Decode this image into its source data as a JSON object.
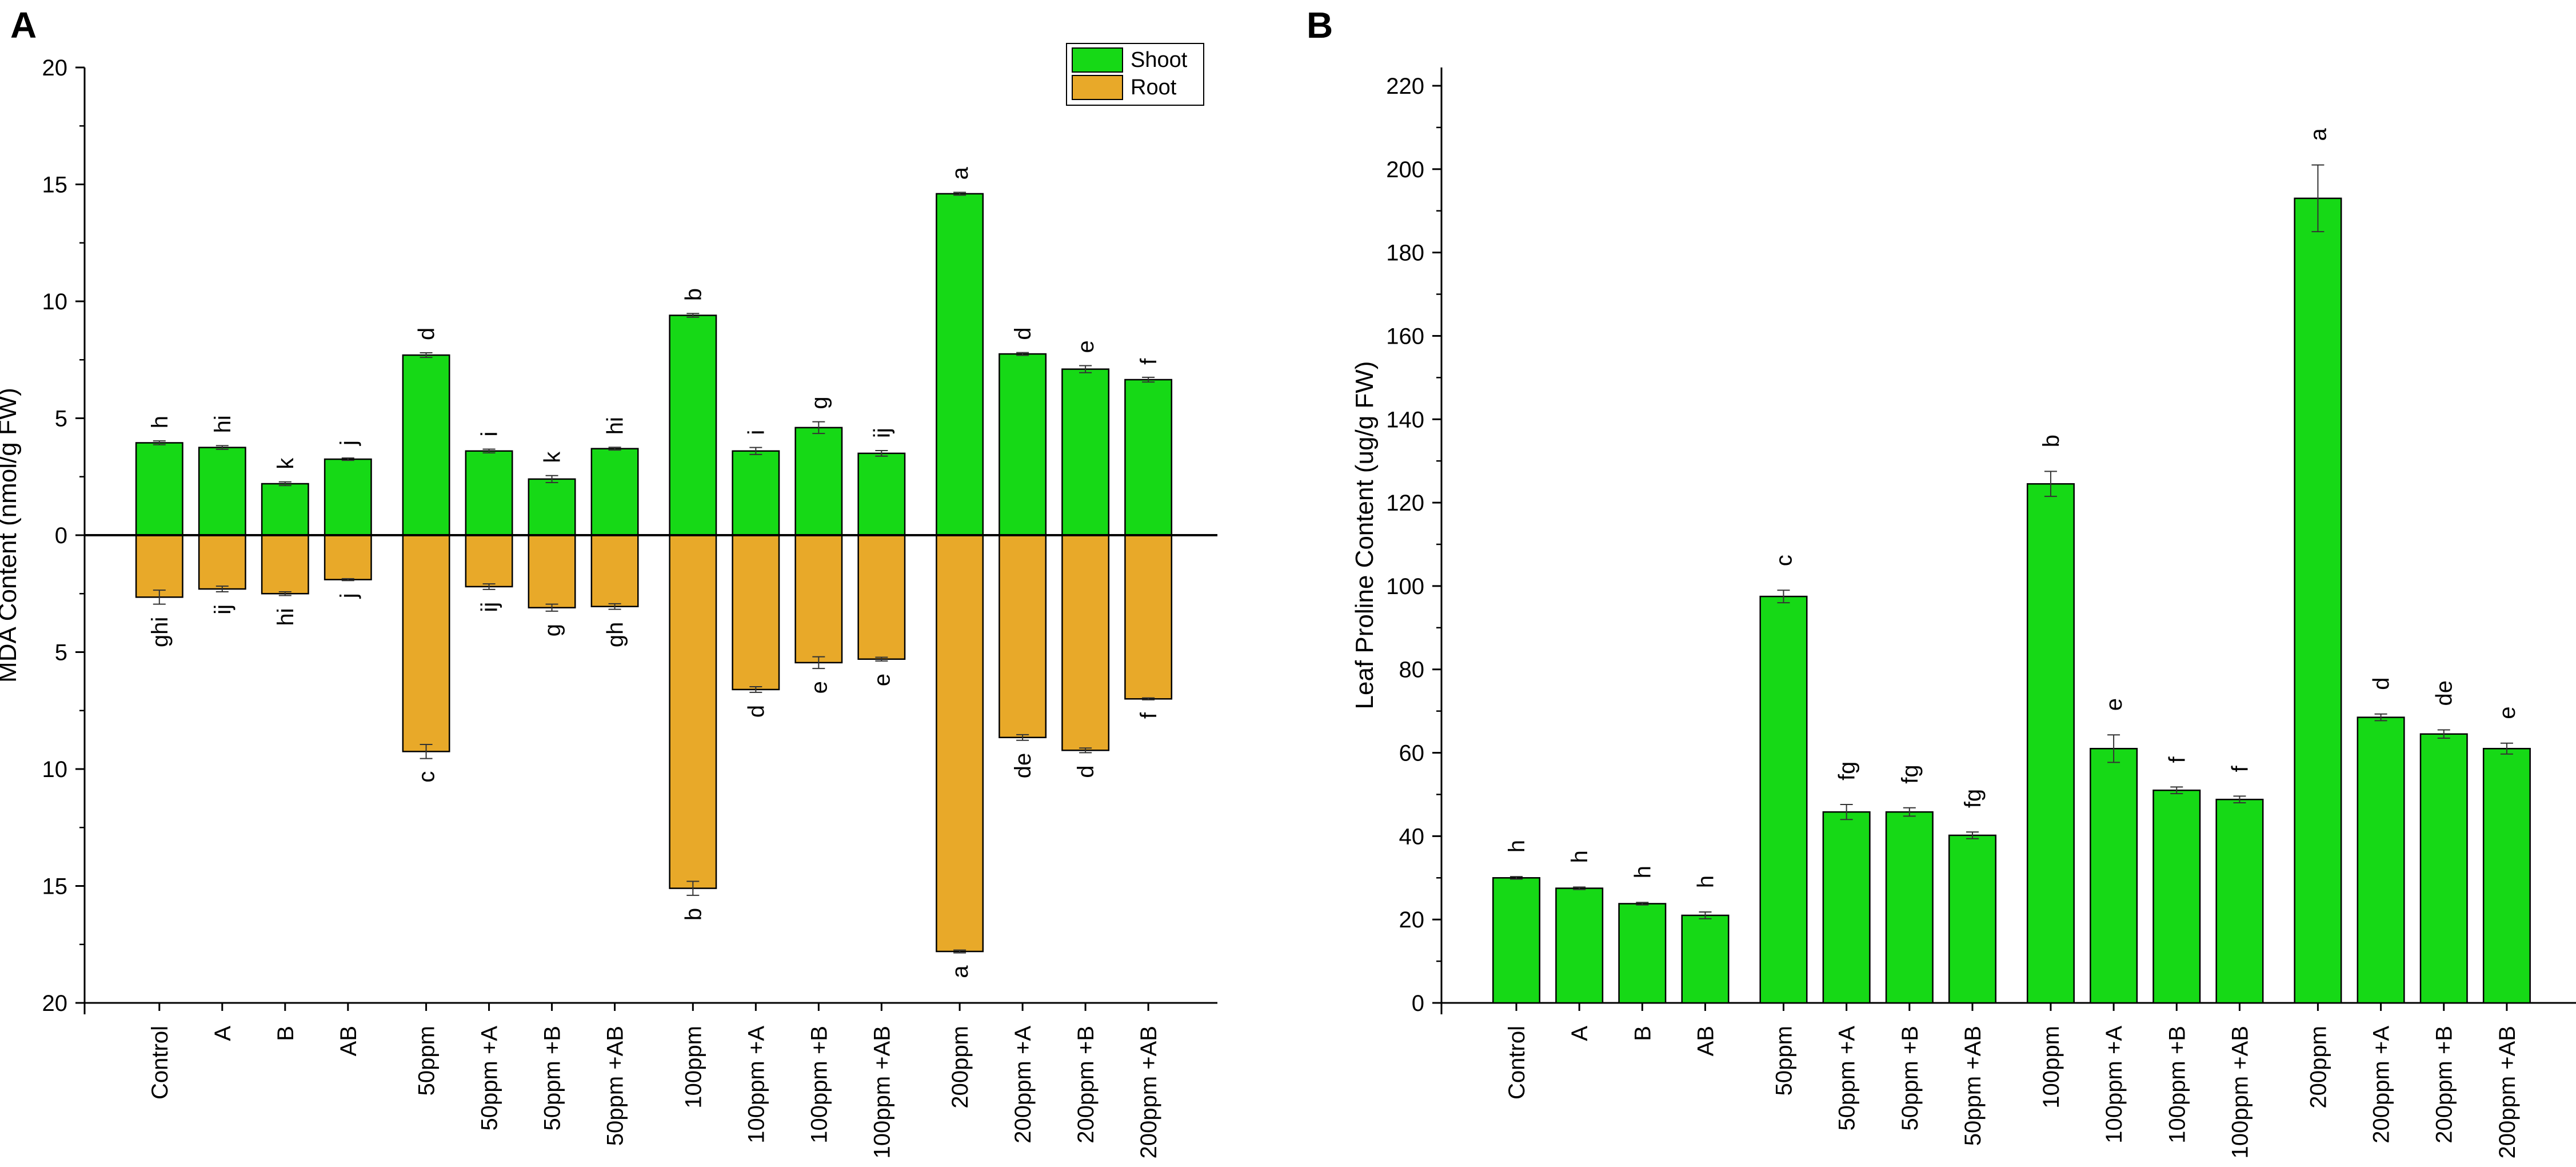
{
  "chart_data": [
    {
      "panel": "A",
      "type": "bar",
      "ylabel": "MDA Content (nmol/g FW)",
      "xlabel": "",
      "ylim": [
        -20,
        20
      ],
      "yticks": [
        20,
        15,
        10,
        5,
        0,
        -5,
        -10,
        -15,
        -20
      ],
      "ytick_labels": [
        "20",
        "15",
        "10",
        "5",
        "0",
        "5",
        "10",
        "15",
        "20"
      ],
      "legend": {
        "position": "top-right",
        "entries": [
          "Shoot",
          "Root"
        ]
      },
      "colors": {
        "Shoot": "#16d916",
        "Root": "#e8a929"
      },
      "categories": [
        "Control",
        "A",
        "B",
        "AB",
        "50ppm",
        "50ppm +A",
        "50ppm +B",
        "50ppm +AB",
        "100ppm",
        "100ppm +A",
        "100ppm +B",
        "100ppm +AB",
        "200ppm",
        "200ppm +A",
        "200ppm +B",
        "200ppm +AB"
      ],
      "series": [
        {
          "name": "Shoot",
          "values": [
            3.95,
            3.75,
            2.2,
            3.25,
            7.7,
            3.6,
            2.4,
            3.7,
            9.4,
            3.6,
            4.6,
            3.5,
            14.6,
            7.75,
            7.1,
            6.65
          ],
          "errors": [
            0.08,
            0.08,
            0.08,
            0.05,
            0.1,
            0.08,
            0.15,
            0.06,
            0.08,
            0.15,
            0.25,
            0.12,
            0.06,
            0.06,
            0.15,
            0.1
          ],
          "labels": [
            "h",
            "hi",
            "k",
            "j",
            "d",
            "i",
            "k",
            "hi",
            "b",
            "i",
            "g",
            "ij",
            "a",
            "d",
            "e",
            "f"
          ]
        },
        {
          "name": "Root",
          "values": [
            -2.65,
            -2.3,
            -2.5,
            -1.9,
            -9.25,
            -2.2,
            -3.1,
            -3.05,
            -15.1,
            -6.6,
            -5.45,
            -5.3,
            -17.8,
            -8.65,
            -9.2,
            -7.0
          ],
          "errors": [
            0.3,
            0.12,
            0.08,
            0.04,
            0.3,
            0.12,
            0.15,
            0.12,
            0.3,
            0.12,
            0.25,
            0.08,
            0.06,
            0.12,
            0.1,
            0.04
          ],
          "labels": [
            "ghi",
            "ij",
            "hi",
            "j",
            "c",
            "ij",
            "g",
            "gh",
            "b",
            "d",
            "e",
            "e",
            "a",
            "de",
            "d",
            "f"
          ]
        }
      ]
    },
    {
      "panel": "B",
      "type": "bar",
      "ylabel": "Leaf Proline Content (ug/g FW)",
      "xlabel": "",
      "ylim": [
        0,
        220
      ],
      "yticks": [
        0,
        20,
        40,
        60,
        80,
        100,
        120,
        140,
        160,
        180,
        200,
        220
      ],
      "ytick_labels": [
        "0",
        "20",
        "40",
        "60",
        "80",
        "100",
        "120",
        "140",
        "160",
        "180",
        "200",
        "220"
      ],
      "colors": {
        "bar": "#16d916"
      },
      "categories": [
        "Control",
        "A",
        "B",
        "AB",
        "50ppm",
        "50ppm +A",
        "50ppm +B",
        "50ppm +AB",
        "100ppm",
        "100ppm +A",
        "100ppm +B",
        "100ppm +AB",
        "200ppm",
        "200ppm +A",
        "200ppm +B",
        "200ppm +AB"
      ],
      "series": [
        {
          "name": "Leaf Proline",
          "values": [
            30,
            27.5,
            23.8,
            21,
            97.5,
            45.8,
            45.8,
            40.2,
            124.5,
            61,
            51,
            48.8,
            193,
            68.5,
            64.5,
            61
          ],
          "errors": [
            0.3,
            0.3,
            0.3,
            0.8,
            1.5,
            1.8,
            1.0,
            0.8,
            3.0,
            3.3,
            0.8,
            0.8,
            8.0,
            0.8,
            1.0,
            1.3
          ],
          "labels": [
            "h",
            "h",
            "h",
            "h",
            "c",
            "fg",
            "fg",
            "fg",
            "b",
            "e",
            "f",
            "f",
            "a",
            "d",
            "de",
            "e"
          ]
        }
      ]
    }
  ]
}
